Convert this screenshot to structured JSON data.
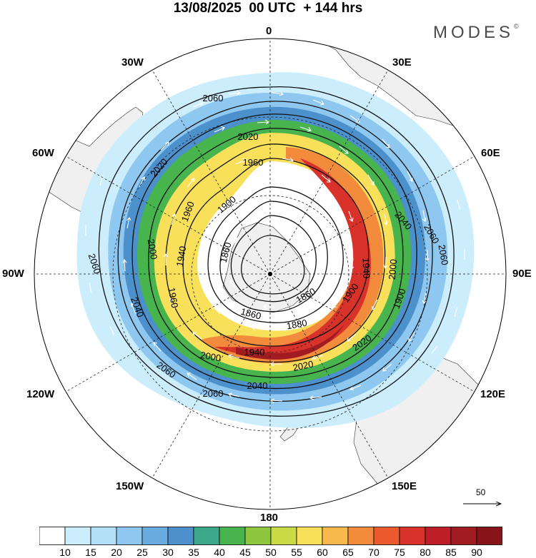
{
  "header": {
    "title": "13/08/2025  00 UTC  + 144 hrs",
    "brand": "MODES",
    "brand_mark": "©"
  },
  "map": {
    "projection": "south-polar-stereographic",
    "ocean_color": "#ffffff",
    "land_color": "#f0f0f0",
    "longitude_labels": [
      "0",
      "30E",
      "60E",
      "90E",
      "120E",
      "150E",
      "180",
      "150W",
      "120W",
      "90W",
      "60W",
      "30W"
    ],
    "contour_labels": [
      "2060",
      "2020",
      "2020",
      "1960",
      "1900",
      "1860",
      "1900",
      "2060",
      "2040",
      "2060",
      "2000",
      "1940",
      "1960",
      "2040",
      "1860",
      "1880",
      "1900",
      "2020",
      "1940",
      "2000",
      "2020",
      "2060",
      "2040",
      "2060",
      "1940",
      "1960",
      "2000",
      "2060",
      "1860"
    ]
  },
  "reference_vector": {
    "label": "50"
  },
  "colorbar": {
    "levels": [
      "10",
      "15",
      "20",
      "25",
      "30",
      "35",
      "40",
      "45",
      "50",
      "55",
      "60",
      "65",
      "70",
      "75",
      "80",
      "85",
      "90"
    ],
    "colors": [
      "#ffffff",
      "#cceefc",
      "#b2e0f8",
      "#8ec8f0",
      "#6aacdf",
      "#4c90cc",
      "#3ea88a",
      "#47b44e",
      "#8ec63f",
      "#c8da46",
      "#f8e05a",
      "#f8b84c",
      "#f38b3c",
      "#ea5a2c",
      "#d8322a",
      "#be1e28",
      "#a01c20",
      "#861418"
    ]
  }
}
